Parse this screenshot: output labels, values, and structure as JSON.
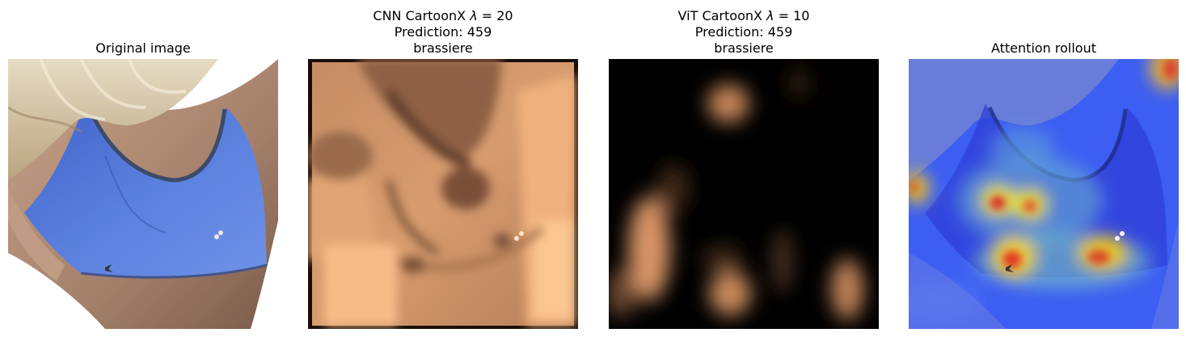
{
  "panels": [
    {
      "title": "Original image",
      "image": "photo of a person wearing a blue sports top, shot from above the shoulder"
    },
    {
      "title_prefix": "CNN CartoonX",
      "lambda_symbol": "λ",
      "lambda_value": " = 20",
      "prediction": "Prediction: 459",
      "label": "brassiere",
      "image": "copper colormap explanation mask"
    },
    {
      "title_prefix": "ViT CartoonX",
      "lambda_symbol": "λ",
      "lambda_value": " = 10",
      "prediction": "Prediction: 459",
      "label": "brassiere",
      "image": "copper colormap explanation mask, mostly black"
    },
    {
      "title": "Attention rollout",
      "image": "jet colormap attention heatmap overlaid on photo"
    }
  ],
  "colors": {
    "top_blue": "#4f72d4",
    "skin": "#b08c73",
    "copper_light": "#f2b07e",
    "copper_dark": "#5a3a24",
    "jet_blue": "#2a4ef0"
  }
}
